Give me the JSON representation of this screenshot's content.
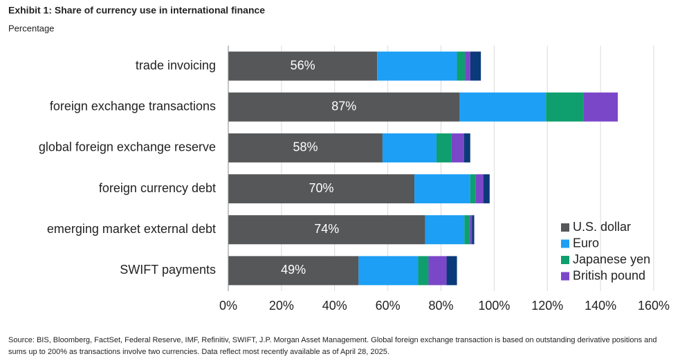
{
  "chart_data": {
    "type": "stacked-bar-horizontal",
    "title": "Exhibit 1: Share of currency use in international finance",
    "subtitle": "Percentage",
    "source": "Source: BIS, Bloomberg, FactSet, Federal Reserve, IMF, Refinitiv, SWIFT, J.P. Morgan Asset Management. Global foreign exchange transaction is based on outstanding derivative positions and sums up to 200% as transactions involve two currencies. Data reflect most recently available as of April 28, 2025.",
    "categories": [
      "trade invoicing",
      "foreign exchange transactions",
      "global foreign exchange reserve",
      "foreign currency debt",
      "emerging market external debt",
      "SWIFT payments"
    ],
    "series": [
      {
        "name": "U.S. dollar",
        "color": "#555759",
        "values": [
          56,
          87,
          58,
          70,
          74,
          49
        ],
        "value_labels": [
          "56%",
          "87%",
          "58%",
          "70%",
          "74%",
          "49%"
        ]
      },
      {
        "name": "Euro",
        "color": "#1c9ff5",
        "values": [
          30,
          32.5,
          20.3,
          21,
          14.8,
          22.4
        ]
      },
      {
        "name": "Japanese yen",
        "color": "#0f9f6e",
        "values": [
          3,
          14,
          5.7,
          2.1,
          2.1,
          3.9
        ]
      },
      {
        "name": "British pound",
        "color": "#7b47c9",
        "values": [
          2,
          13,
          4.7,
          2.9,
          0.8,
          6.8
        ]
      },
      {
        "color": "#0b3a7a",
        "values": [
          4,
          null,
          2.3,
          2.3,
          0.8,
          3.9
        ]
      }
    ],
    "xlim": [
      0,
      160
    ],
    "xticks": [
      {
        "value": 0,
        "label": "0%"
      },
      {
        "value": 20,
        "label": "20%"
      },
      {
        "value": 40,
        "label": "40%"
      },
      {
        "value": 60,
        "label": "60%"
      },
      {
        "value": 80,
        "label": "80%"
      },
      {
        "value": 100,
        "label": "100%"
      },
      {
        "value": 120,
        "label": "120%"
      },
      {
        "value": 140,
        "label": "140%"
      },
      {
        "value": 160,
        "label": "160%"
      }
    ],
    "grid": true,
    "legend": "right"
  }
}
